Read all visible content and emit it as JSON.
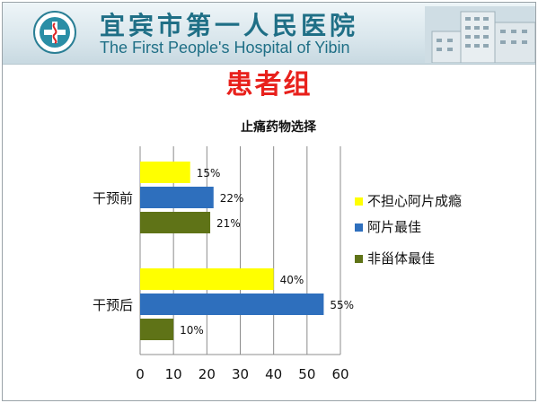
{
  "header": {
    "hospital_name_cn": "宜宾市第一人民医院",
    "hospital_name_en": "The First People's Hospital of Yibin",
    "logo_icon": "hospital-emblem-icon",
    "building_image": "hospital-building-icon"
  },
  "slide": {
    "title": "患者组"
  },
  "chart_data": {
    "type": "bar",
    "orientation": "horizontal",
    "title": "止痛药物选择",
    "categories": [
      "干预前",
      "干预后"
    ],
    "series": [
      {
        "name": "不担心阿片成瘾",
        "color": "#ffff00",
        "values": [
          15,
          40
        ],
        "labels": [
          "15%",
          "40%"
        ]
      },
      {
        "name": "阿片最佳",
        "color": "#2e6fbd",
        "values": [
          22,
          55
        ],
        "labels": [
          "22%",
          "55%"
        ]
      },
      {
        "name": "非甾体最佳",
        "color": "#5f7317",
        "values": [
          21,
          10
        ],
        "labels": [
          "21%",
          "10%"
        ]
      }
    ],
    "xlim": [
      0,
      60
    ],
    "xticks": [
      "0",
      "10",
      "20",
      "30",
      "40",
      "50",
      "60"
    ],
    "grid": true,
    "legend_position": "right"
  }
}
